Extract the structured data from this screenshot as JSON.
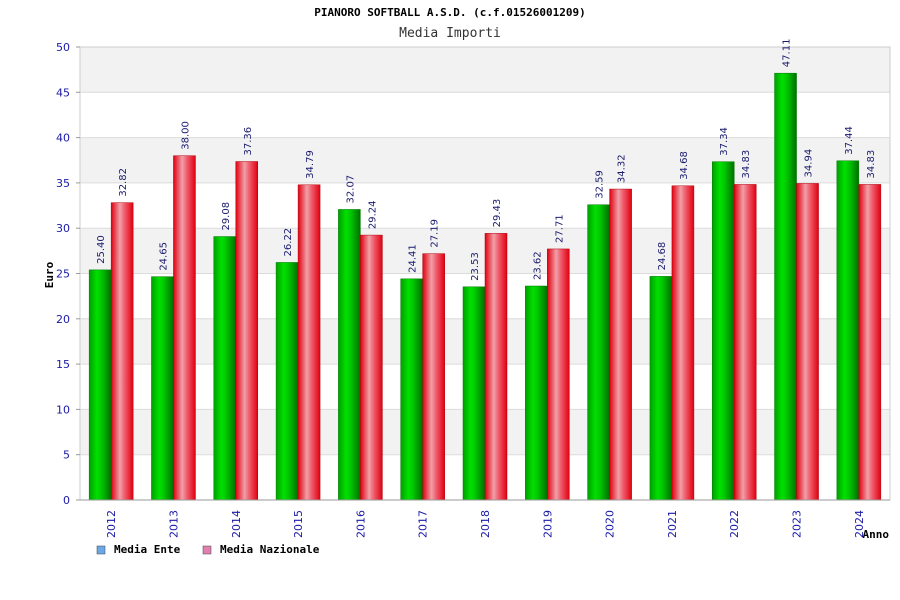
{
  "chart_data": {
    "type": "bar",
    "title": "PIANORO SOFTBALL A.S.D. (c.f.01526001209)",
    "subtitle": "Media Importi",
    "xlabel": "Anno",
    "ylabel": "Euro",
    "ylim": [
      0,
      50
    ],
    "yticks": [
      "0",
      "5",
      "10",
      "15",
      "20",
      "25",
      "30",
      "35",
      "40",
      "45",
      "50"
    ],
    "grid": true,
    "legend_position": "bottom-left",
    "categories": [
      "2012",
      "2013",
      "2014",
      "2015",
      "2016",
      "2017",
      "2018",
      "2019",
      "2020",
      "2021",
      "2022",
      "2023",
      "2024"
    ],
    "series": [
      {
        "name": "Media Ente",
        "values": [
          25.4,
          24.65,
          29.08,
          26.22,
          32.07,
          24.41,
          23.53,
          23.62,
          32.59,
          24.68,
          37.34,
          47.11,
          37.44
        ],
        "labels": [
          "25.40",
          "24.65",
          "29.08",
          "26.22",
          "32.07",
          "24.41",
          "23.53",
          "23.62",
          "32.59",
          "24.68",
          "37.34",
          "47.11",
          "37.44"
        ],
        "bar_color": "#00b400",
        "legend_color": "#6aa8e8"
      },
      {
        "name": "Media Nazionale",
        "values": [
          32.82,
          38.0,
          37.36,
          34.79,
          29.24,
          27.19,
          29.43,
          27.71,
          34.32,
          34.68,
          34.83,
          34.94,
          34.83
        ],
        "labels": [
          "32.82",
          "38.00",
          "37.36",
          "34.79",
          "29.24",
          "27.19",
          "29.43",
          "27.71",
          "34.32",
          "34.68",
          "34.83",
          "34.94",
          "34.83"
        ],
        "bar_color": "#e8101e",
        "legend_color": "#e080b0"
      }
    ]
  }
}
